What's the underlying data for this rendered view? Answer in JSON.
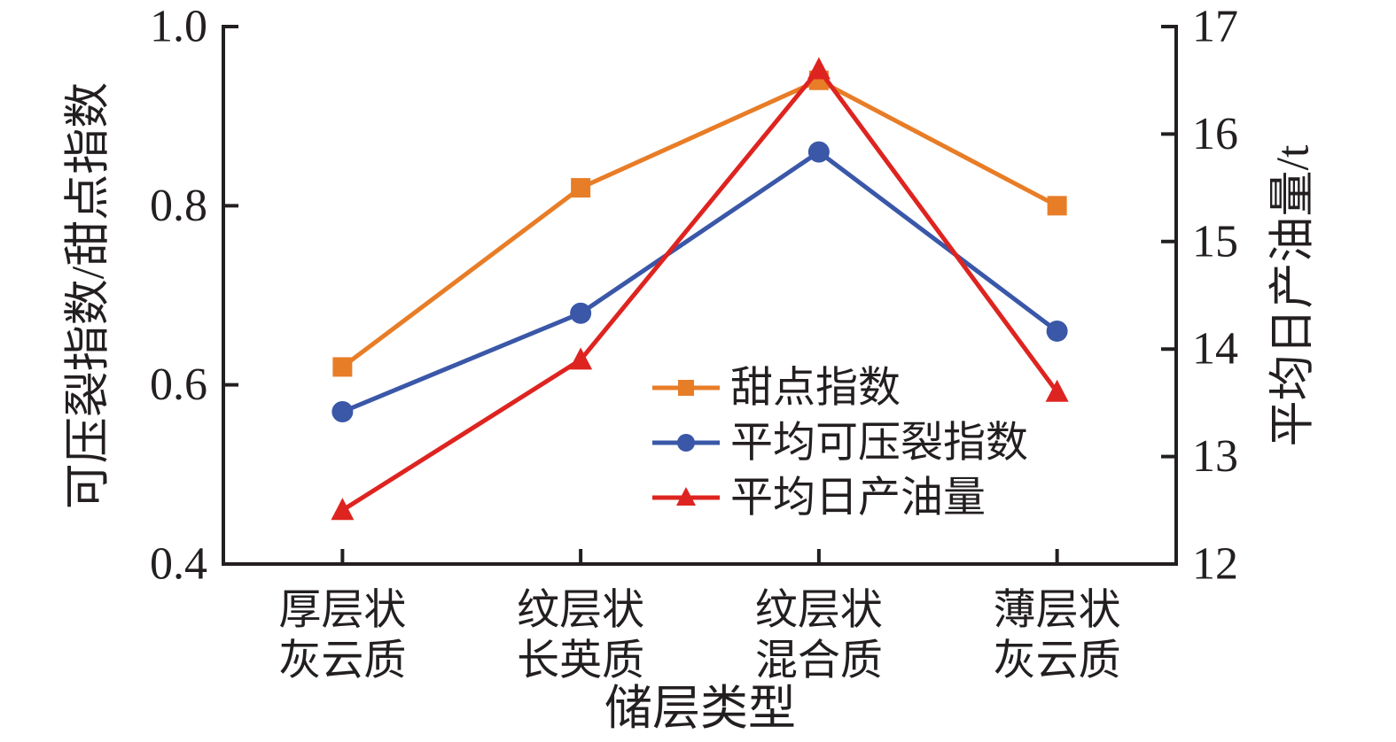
{
  "figure": {
    "background": "#FFFFFF",
    "text_color": "#231F20",
    "axis_color": "#231F20"
  },
  "chart_data": {
    "type": "line",
    "title": "",
    "xlabel": "储层类型",
    "categories": [
      [
        "厚层状",
        "灰云质"
      ],
      [
        "纹层状",
        "长英质"
      ],
      [
        "纹层状",
        "混合质"
      ],
      [
        "薄层状",
        "灰云质"
      ]
    ],
    "axes": {
      "left": {
        "label": "可压裂指数/甜点指数",
        "min": 0.4,
        "max": 1.0,
        "ticks": [
          0.4,
          0.6,
          0.8,
          1.0
        ],
        "tick_labels": [
          "0.4",
          "0.6",
          "0.8",
          "1.0"
        ]
      },
      "right": {
        "label": "平均日产油量/t",
        "min": 12,
        "max": 17,
        "ticks": [
          12,
          13,
          14,
          15,
          16,
          17
        ],
        "tick_labels": [
          "12",
          "13",
          "14",
          "15",
          "16",
          "17"
        ]
      }
    },
    "series": [
      {
        "name": "甜点指数",
        "axis": "left",
        "marker": "square",
        "color": "#E87D27",
        "values": [
          0.62,
          0.82,
          0.94,
          0.8
        ]
      },
      {
        "name": "平均可压裂指数",
        "axis": "left",
        "marker": "circle",
        "color": "#3A57A8",
        "values": [
          0.57,
          0.68,
          0.86,
          0.66
        ]
      },
      {
        "name": "平均日产油量",
        "axis": "right",
        "marker": "triangle",
        "color": "#DE2420",
        "values": [
          12.5,
          13.9,
          16.6,
          13.6
        ]
      }
    ],
    "legend_position": "inside-middle-right",
    "grid": false
  }
}
